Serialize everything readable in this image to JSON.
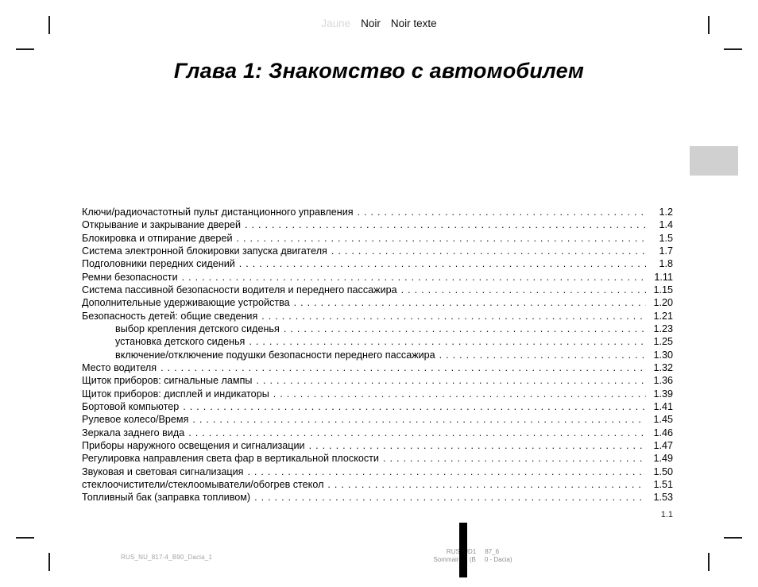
{
  "proof_header": {
    "jaune_label": "Jaune",
    "noir_label": "Noir",
    "noir_texte_label": "Noir texte",
    "jaune_color": "#d9d9d9",
    "noir_color": "#111111"
  },
  "title": "Глава 1: Знакомство с автомобилем",
  "toc": {
    "entries": [
      {
        "label": "Ключи/радиочастотный пульт дистанционного управления",
        "page": "1.2",
        "indent": false
      },
      {
        "label": "Открывание и закрывание дверей",
        "page": "1.4",
        "indent": false
      },
      {
        "label": "Блокировка и отпирание дверей",
        "page": "1.5",
        "indent": false
      },
      {
        "label": "Система электронной блокировки запуска двигателя",
        "page": "1.7",
        "indent": false
      },
      {
        "label": "Подголовники передних сидений",
        "page": "1.8",
        "indent": false
      },
      {
        "label": "Ремни безопасности",
        "page": "1.11",
        "indent": false
      },
      {
        "label": "Система пассивной безопасности водителя и переднего пассажира",
        "page": "1.15",
        "indent": false
      },
      {
        "label": "Дополнительные удерживающие устройства",
        "page": "1.20",
        "indent": false
      },
      {
        "label": "Безопасность детей: общие сведения",
        "page": "1.21",
        "indent": false
      },
      {
        "label": "выбор крепления детского сиденья",
        "page": "1.23",
        "indent": true
      },
      {
        "label": "установка детского сиденья",
        "page": "1.25",
        "indent": true
      },
      {
        "label": "включение/отключение подушки безопасности переднего пассажира",
        "page": "1.30",
        "indent": true
      },
      {
        "label": "Место водителя",
        "page": "1.32",
        "indent": false
      },
      {
        "label": "Щиток приборов: сигнальные лампы",
        "page": "1.36",
        "indent": false
      },
      {
        "label": "Щиток приборов: дисплей и индикаторы",
        "page": "1.39",
        "indent": false
      },
      {
        "label": "Бортовой компьютер",
        "page": "1.41",
        "indent": false
      },
      {
        "label": "Рулевое колесо/Время",
        "page": "1.45",
        "indent": false
      },
      {
        "label": "Зеркала заднего вида",
        "page": "1.46",
        "indent": false
      },
      {
        "label": "Приборы наружного освещения и сигнализации",
        "page": "1.47",
        "indent": false
      },
      {
        "label": "Регулировка направления света фар в вертикальной плоскости",
        "page": "1.49",
        "indent": false
      },
      {
        "label": "Звуковая и световая сигнализация",
        "page": "1.50",
        "indent": false
      },
      {
        "label": "стеклоочистители/стеклоомыватели/обогрев стекол",
        "page": "1.51",
        "indent": false
      },
      {
        "label": "Топливный бак (заправка топливом)",
        "page": "1.53",
        "indent": false
      }
    ]
  },
  "folio": "1.1",
  "footers": {
    "left": "RUS_NU_817-4_B90_Dacia_1",
    "center_line1_left": "RUS_UD1",
    "center_line1_right": "87_6",
    "center_line2_left": "Sommaire 1 (B",
    "center_line2_right": "0 - Dacia)"
  },
  "tab_color": "#d0d0d0"
}
